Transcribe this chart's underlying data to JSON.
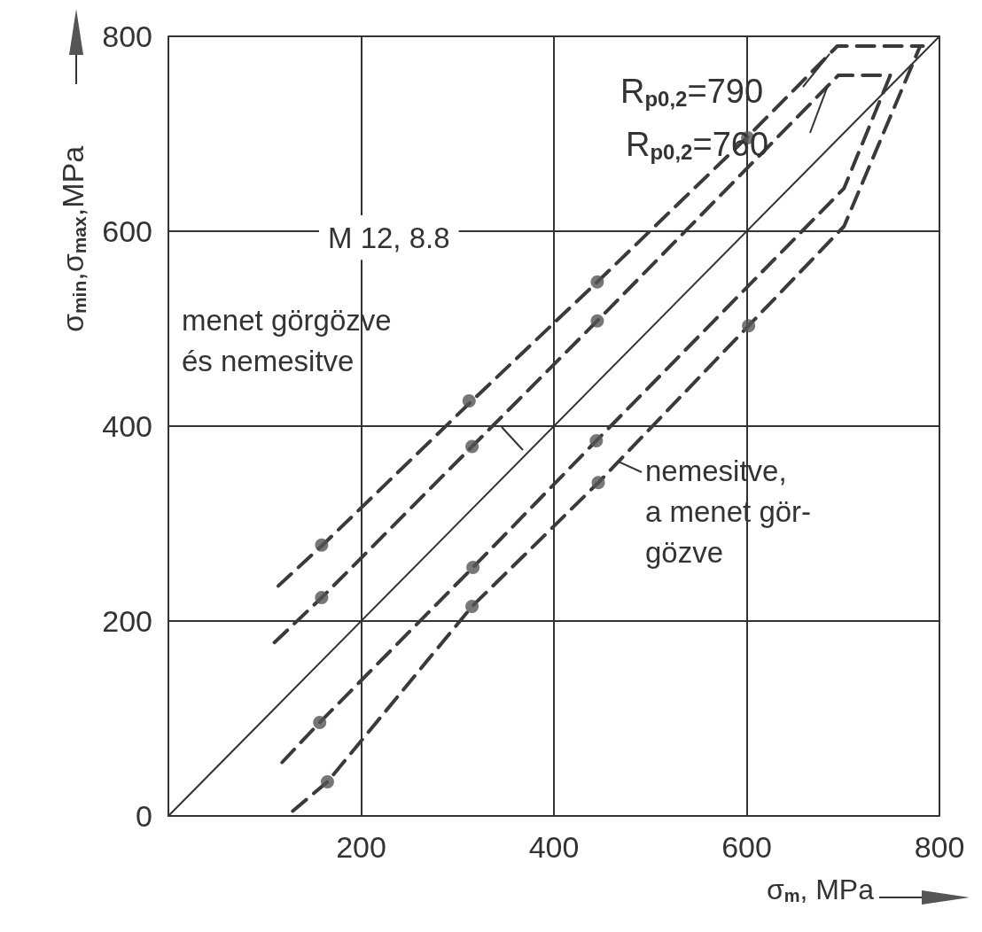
{
  "chart_data": {
    "type": "line",
    "xlabel": "σ$_{m}$, MPa",
    "ylabel": "σ$_{min}$,σ$_{max}$,MPa",
    "xlim": [
      0,
      800
    ],
    "xticks": [
      {
        "value": 0,
        "label": null
      },
      200,
      400,
      600,
      800
    ],
    "ylim": [
      0,
      800
    ],
    "yticks": [
      0,
      200,
      400,
      600,
      800
    ],
    "grid": true,
    "marker": "none",
    "line_style": "dashed",
    "annotations": [
      {
        "text": "R$_{p0,2}$=790",
        "x": 686,
        "y": 782
      },
      {
        "text": "R$_{p0,2}$=760",
        "x": 684,
        "y": 749
      },
      "M 12, 8.8",
      "menet görgözve\nés nemesitve",
      {
        "text": "nemesitve,\na menet gör-\ngözve",
        "x": 466,
        "y": 364
      }
    ],
    "series": [
      {
        "color": "#333333",
        "line_style": "solid",
        "x": [
          0,
          800
        ],
        "values": [
          0,
          800
        ]
      },
      {
        "color": "#3a3a3a",
        "x": [
          114,
          160,
          315,
          445,
          600,
          694,
          783
        ],
        "values": [
          236,
          278,
          426,
          548,
          696,
          790,
          790
        ]
      },
      {
        "color": "#3a3a3a",
        "x": [
          110,
          159,
          315,
          445,
          695,
          749
        ],
        "values": [
          178,
          224,
          379,
          508,
          760,
          760
        ]
      },
      {
        "color": "#3a3a3a",
        "x": [
          118,
          157,
          316,
          444,
          701,
          749
        ],
        "values": [
          55,
          96,
          255,
          385,
          644,
          760
        ]
      },
      {
        "color": "#3a3a3a",
        "x": [
          129,
          165,
          315,
          446,
          602,
          701,
          780
        ],
        "values": [
          5,
          35,
          215,
          342,
          503,
          605,
          790
        ]
      },
      {
        "type": "scatter",
        "marker": "circle",
        "color": "#555555",
        "x": [
          159,
          159,
          157,
          165,
          312,
          315,
          316,
          315,
          445,
          445,
          444,
          446,
          601,
          602
        ],
        "values": [
          278,
          224,
          96,
          35,
          426,
          379,
          255,
          215,
          548,
          508,
          385,
          342,
          696,
          503
        ]
      }
    ]
  }
}
